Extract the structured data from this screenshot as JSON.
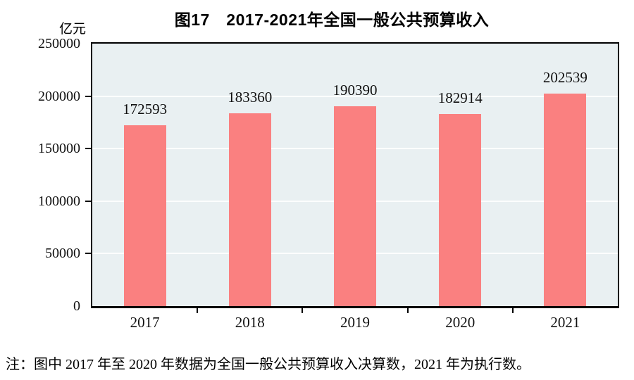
{
  "chart_data": {
    "type": "bar",
    "title": "图17　2017-2021年全国一般公共预算收入",
    "unit_label": "亿元",
    "categories": [
      "2017",
      "2018",
      "2019",
      "2020",
      "2021"
    ],
    "values": [
      172593,
      183360,
      190390,
      182914,
      202539
    ],
    "ylim": [
      0,
      250000
    ],
    "yticks": [
      0,
      50000,
      100000,
      150000,
      200000,
      250000
    ],
    "legend": "none",
    "grid": "horizontal",
    "data_labels_visible": true,
    "colors": {
      "bar": "#FA8080",
      "plot_background": "#E9F0F2",
      "gridline": "#FFFFFF",
      "axis": "#000000"
    }
  },
  "footnote": "注：图中 2017 年至 2020 年数据为全国一般公共预算收入决算数，2021 年为执行数。"
}
